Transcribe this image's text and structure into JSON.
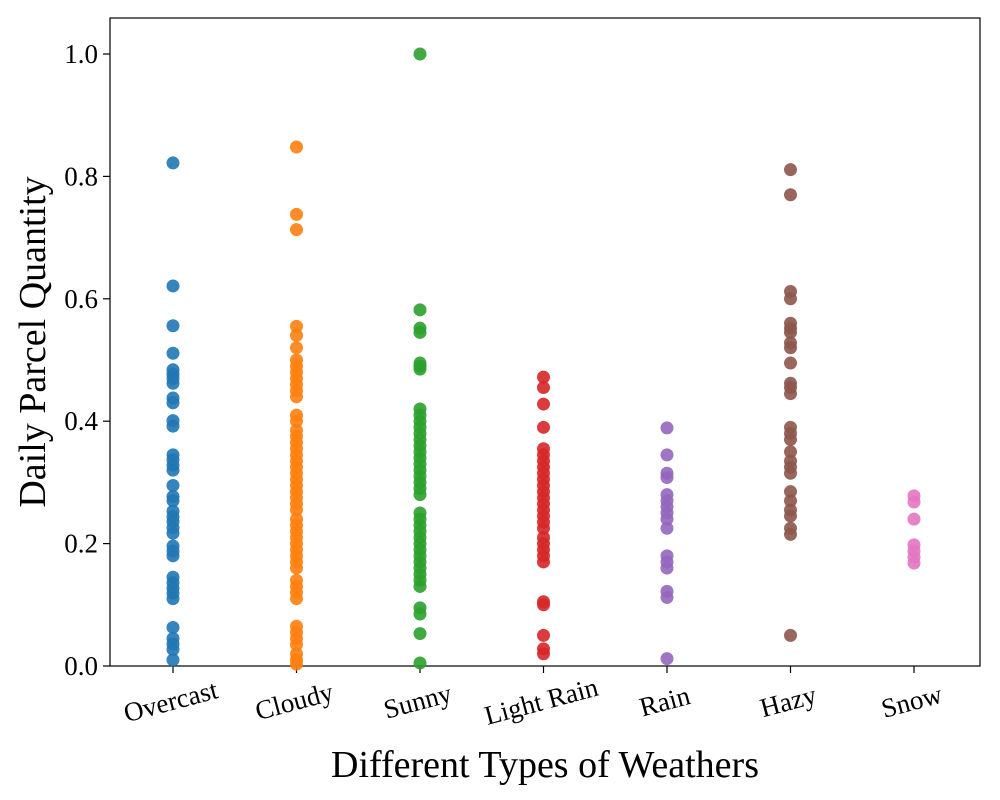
{
  "chart_data": {
    "type": "scatter",
    "title": "",
    "xlabel": "Different Types of Weathers",
    "ylabel": "Daily Parcel Quantity",
    "ylim": [
      0.0,
      1.05
    ],
    "yticks": [
      "0.0",
      "0.2",
      "0.4",
      "0.6",
      "0.8",
      "1.0"
    ],
    "grid": false,
    "legend": "none",
    "categories": [
      "Overcast",
      "Cloudy",
      "Sunny",
      "Light Rain",
      "Rain",
      "Hazy",
      "Snow"
    ],
    "series": [
      {
        "category": "Overcast",
        "color": "#1f77b4",
        "values": [
          0.822,
          0.621,
          0.556,
          0.511,
          0.484,
          0.477,
          0.47,
          0.462,
          0.438,
          0.43,
          0.401,
          0.392,
          0.345,
          0.337,
          0.328,
          0.32,
          0.295,
          0.277,
          0.27,
          0.253,
          0.244,
          0.236,
          0.226,
          0.217,
          0.196,
          0.188,
          0.18,
          0.145,
          0.136,
          0.127,
          0.119,
          0.11,
          0.063,
          0.045,
          0.036,
          0.027,
          0.01
        ]
      },
      {
        "category": "Cloudy",
        "color": "#ff7f0e",
        "values": [
          0.848,
          0.738,
          0.713,
          0.555,
          0.54,
          0.52,
          0.5,
          0.49,
          0.48,
          0.47,
          0.46,
          0.45,
          0.44,
          0.41,
          0.4,
          0.385,
          0.375,
          0.365,
          0.355,
          0.345,
          0.335,
          0.325,
          0.315,
          0.305,
          0.295,
          0.285,
          0.275,
          0.265,
          0.255,
          0.24,
          0.23,
          0.22,
          0.21,
          0.2,
          0.19,
          0.18,
          0.17,
          0.16,
          0.14,
          0.13,
          0.12,
          0.11,
          0.065,
          0.055,
          0.045,
          0.035,
          0.02,
          0.01,
          0.003
        ]
      },
      {
        "category": "Sunny",
        "color": "#2ca02c",
        "values": [
          1.0,
          0.582,
          0.552,
          0.545,
          0.495,
          0.49,
          0.485,
          0.42,
          0.41,
          0.4,
          0.39,
          0.38,
          0.37,
          0.36,
          0.35,
          0.34,
          0.33,
          0.32,
          0.31,
          0.3,
          0.29,
          0.28,
          0.25,
          0.24,
          0.23,
          0.22,
          0.21,
          0.2,
          0.19,
          0.18,
          0.17,
          0.16,
          0.15,
          0.14,
          0.13,
          0.095,
          0.085,
          0.053,
          0.005
        ]
      },
      {
        "category": "Light Rain",
        "color": "#d62728",
        "values": [
          0.472,
          0.455,
          0.428,
          0.39,
          0.355,
          0.345,
          0.335,
          0.325,
          0.315,
          0.305,
          0.295,
          0.285,
          0.275,
          0.265,
          0.255,
          0.245,
          0.235,
          0.225,
          0.21,
          0.2,
          0.19,
          0.18,
          0.17,
          0.105,
          0.1,
          0.05,
          0.028,
          0.02
        ]
      },
      {
        "category": "Rain",
        "color": "#9467bd",
        "values": [
          0.389,
          0.345,
          0.315,
          0.308,
          0.28,
          0.27,
          0.26,
          0.25,
          0.24,
          0.225,
          0.18,
          0.17,
          0.16,
          0.122,
          0.112,
          0.012
        ]
      },
      {
        "category": "Hazy",
        "color": "#8c564b",
        "values": [
          0.811,
          0.77,
          0.612,
          0.6,
          0.56,
          0.552,
          0.545,
          0.528,
          0.52,
          0.495,
          0.462,
          0.455,
          0.445,
          0.39,
          0.38,
          0.37,
          0.35,
          0.335,
          0.325,
          0.315,
          0.285,
          0.27,
          0.255,
          0.245,
          0.225,
          0.215,
          0.05
        ]
      },
      {
        "category": "Snow",
        "color": "#e377c2",
        "values": [
          0.278,
          0.268,
          0.24,
          0.198,
          0.188,
          0.178,
          0.168
        ]
      }
    ]
  }
}
